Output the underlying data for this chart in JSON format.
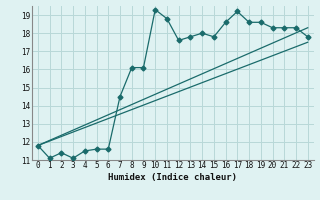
{
  "xlabel": "Humidex (Indice chaleur)",
  "bg_color": "#dff2f2",
  "grid_color": "#b8d8d8",
  "line_color": "#1a6b6b",
  "xlim": [
    -0.5,
    23.5
  ],
  "ylim": [
    11,
    19.5
  ],
  "xticks": [
    0,
    1,
    2,
    3,
    4,
    5,
    6,
    7,
    8,
    9,
    10,
    11,
    12,
    13,
    14,
    15,
    16,
    17,
    18,
    19,
    20,
    21,
    22,
    23
  ],
  "yticks": [
    11,
    12,
    13,
    14,
    15,
    16,
    17,
    18,
    19
  ],
  "line1_x": [
    0,
    1,
    2,
    3,
    4,
    5,
    6,
    7,
    8,
    9,
    10,
    11,
    12,
    13,
    14,
    15,
    16,
    17,
    18,
    19,
    20,
    21,
    22,
    23
  ],
  "line1_y": [
    11.8,
    11.1,
    11.4,
    11.1,
    11.5,
    11.6,
    11.6,
    14.5,
    16.1,
    16.1,
    19.3,
    18.8,
    17.6,
    17.8,
    18.0,
    17.8,
    18.6,
    19.2,
    18.6,
    18.6,
    18.3,
    18.3,
    18.3,
    17.8
  ],
  "line2_x": [
    0,
    23
  ],
  "line2_y": [
    11.8,
    18.3
  ],
  "line3_x": [
    0,
    23
  ],
  "line3_y": [
    11.8,
    17.5
  ],
  "marker": "D",
  "markersize": 2.5,
  "tick_fontsize": 5.5,
  "xlabel_fontsize": 6.5
}
